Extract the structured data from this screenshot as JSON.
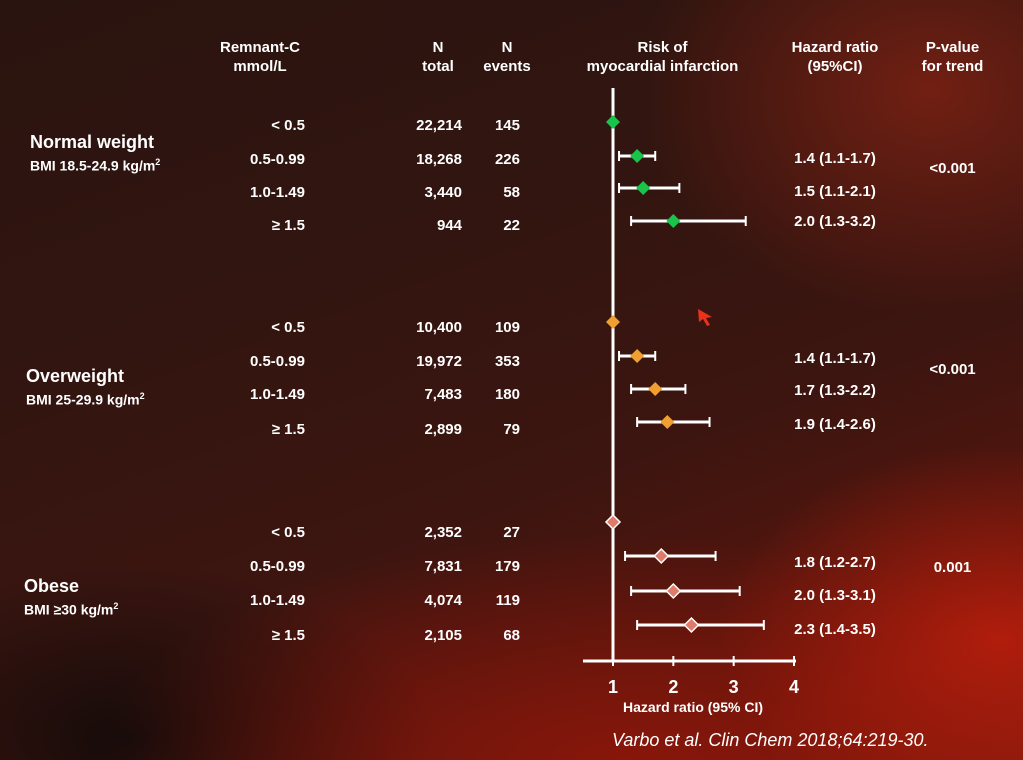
{
  "headers": {
    "remnant": [
      "Remnant-C",
      "mmol/L"
    ],
    "n_total": [
      "N",
      "total"
    ],
    "n_events": [
      "N",
      "events"
    ],
    "risk": [
      "Risk of",
      "myocardial infarction"
    ],
    "hr": [
      "Hazard ratio",
      "(95%CI)"
    ],
    "p": [
      "P-value",
      "for trend"
    ]
  },
  "groups": [
    {
      "name": "Normal weight",
      "bmi": "BMI 18.5-24.9 kg/m",
      "bmi_sup": "2",
      "p_value": "<0.001",
      "marker_color": "#19c44a",
      "rows": [
        {
          "category": "< 0.5",
          "n_total": "22,214",
          "n_events": "145",
          "hr_text": ""
        },
        {
          "category": "0.5-0.99",
          "n_total": "18,268",
          "n_events": "226",
          "hr_text": "1.4 (1.1-1.7)"
        },
        {
          "category": "1.0-1.49",
          "n_total": "3,440",
          "n_events": "58",
          "hr_text": "1.5 (1.1-2.1)"
        },
        {
          "category": "≥ 1.5",
          "n_total": "944",
          "n_events": "22",
          "hr_text": "2.0 (1.3-3.2)"
        }
      ]
    },
    {
      "name": "Overweight",
      "bmi": "BMI 25-29.9 kg/m",
      "bmi_sup": "2",
      "p_value": "<0.001",
      "marker_color": "#f0a030",
      "rows": [
        {
          "category": "< 0.5",
          "n_total": "10,400",
          "n_events": "109",
          "hr_text": ""
        },
        {
          "category": "0.5-0.99",
          "n_total": "19,972",
          "n_events": "353",
          "hr_text": "1.4 (1.1-1.7)"
        },
        {
          "category": "1.0-1.49",
          "n_total": "7,483",
          "n_events": "180",
          "hr_text": "1.7 (1.3-2.2)"
        },
        {
          "category": "≥ 1.5",
          "n_total": "2,899",
          "n_events": "79",
          "hr_text": "1.9 (1.4-2.6)"
        }
      ]
    },
    {
      "name": "Obese",
      "bmi": "BMI ≥30 kg/m",
      "bmi_sup": "2",
      "p_value": "0.001",
      "marker_color": "#e07a6a",
      "rows": [
        {
          "category": "< 0.5",
          "n_total": "2,352",
          "n_events": "27",
          "hr_text": ""
        },
        {
          "category": "0.5-0.99",
          "n_total": "7,831",
          "n_events": "179",
          "hr_text": "1.8 (1.2-2.7)"
        },
        {
          "category": "1.0-1.49",
          "n_total": "4,074",
          "n_events": "119",
          "hr_text": "2.0 (1.3-3.1)"
        },
        {
          "category": "≥ 1.5",
          "n_total": "2,105",
          "n_events": "68",
          "hr_text": "2.3 (1.4-3.5)"
        }
      ]
    }
  ],
  "chart_data": {
    "type": "forest",
    "xlabel": "Hazard ratio (95% CI)",
    "xlim": [
      0.95,
      4.0
    ],
    "xticks": [
      "1",
      "2",
      "3",
      "4"
    ],
    "reference_line": 1,
    "series": [
      {
        "name": "Normal weight",
        "points": [
          {
            "hr": 1.0,
            "lo": 1.0,
            "hi": 1.0
          },
          {
            "hr": 1.4,
            "lo": 1.1,
            "hi": 1.7
          },
          {
            "hr": 1.5,
            "lo": 1.1,
            "hi": 2.1
          },
          {
            "hr": 2.0,
            "lo": 1.3,
            "hi": 3.2
          }
        ]
      },
      {
        "name": "Overweight",
        "points": [
          {
            "hr": 1.0,
            "lo": 1.0,
            "hi": 1.0
          },
          {
            "hr": 1.4,
            "lo": 1.1,
            "hi": 1.7
          },
          {
            "hr": 1.7,
            "lo": 1.3,
            "hi": 2.2
          },
          {
            "hr": 1.9,
            "lo": 1.4,
            "hi": 2.6
          }
        ]
      },
      {
        "name": "Obese",
        "points": [
          {
            "hr": 1.0,
            "lo": 1.0,
            "hi": 1.0
          },
          {
            "hr": 1.8,
            "lo": 1.2,
            "hi": 2.7
          },
          {
            "hr": 2.0,
            "lo": 1.3,
            "hi": 3.1
          },
          {
            "hr": 2.3,
            "lo": 1.4,
            "hi": 3.5
          }
        ]
      }
    ]
  },
  "citation": "Varbo et al. Clin Chem 2018;64:219-30."
}
